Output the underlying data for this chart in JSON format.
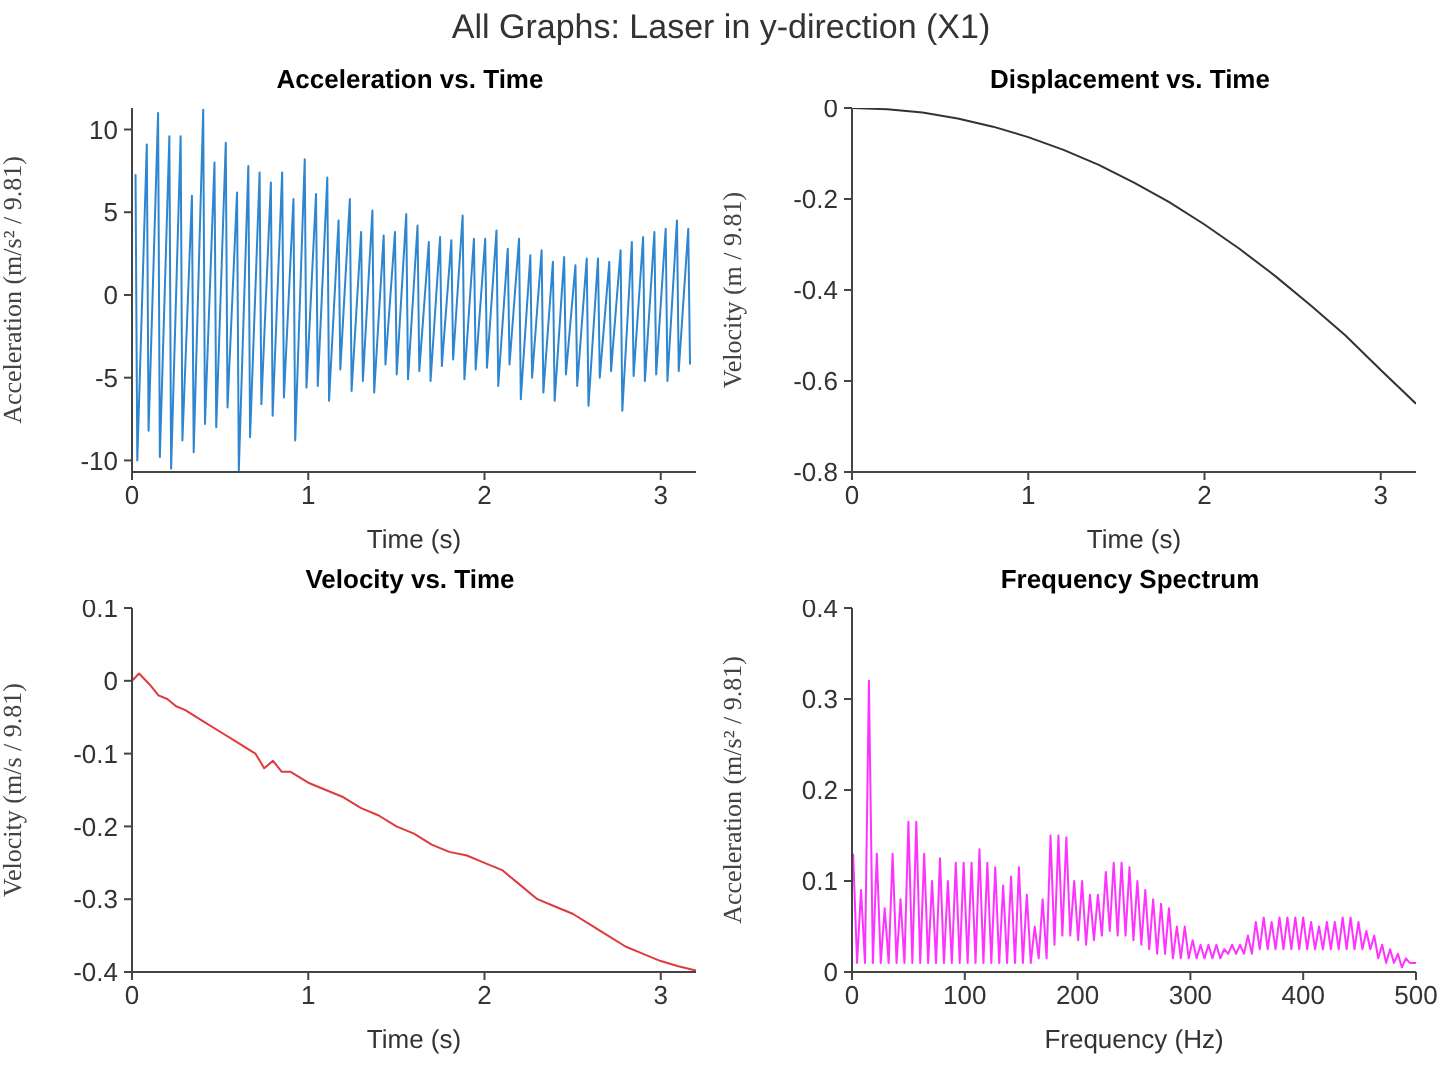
{
  "chart_data": [
    {
      "type": "other",
      "title": "All Graphs: Laser in y-direction (X1)"
    },
    {
      "type": "line",
      "title": "Acceleration vs. Time",
      "xlabel": "Time (s)",
      "ylabel": "Acceleration (m/s² / 9.81)",
      "color": "#2f86d0",
      "xlim": [
        0,
        3.2
      ],
      "xticks": [
        0,
        1,
        2,
        3
      ],
      "ylim": [
        -10.7,
        11.3
      ],
      "yticks": [
        -10,
        -5,
        0,
        5,
        10
      ],
      "x": [
        0.02,
        0.03,
        0.084,
        0.094,
        0.148,
        0.158,
        0.212,
        0.222,
        0.276,
        0.286,
        0.34,
        0.35,
        0.404,
        0.414,
        0.468,
        0.478,
        0.532,
        0.542,
        0.596,
        0.606,
        0.66,
        0.67,
        0.724,
        0.734,
        0.788,
        0.798,
        0.852,
        0.862,
        0.916,
        0.926,
        0.98,
        0.99,
        1.044,
        1.054,
        1.108,
        1.118,
        1.172,
        1.182,
        1.236,
        1.246,
        1.3,
        1.31,
        1.364,
        1.374,
        1.428,
        1.438,
        1.492,
        1.502,
        1.556,
        1.566,
        1.62,
        1.63,
        1.684,
        1.694,
        1.748,
        1.758,
        1.812,
        1.822,
        1.876,
        1.886,
        1.94,
        1.95,
        2.004,
        2.014,
        2.068,
        2.078,
        2.132,
        2.142,
        2.196,
        2.206,
        2.26,
        2.27,
        2.324,
        2.334,
        2.388,
        2.398,
        2.452,
        2.462,
        2.516,
        2.526,
        2.58,
        2.59,
        2.644,
        2.654,
        2.708,
        2.718,
        2.772,
        2.782,
        2.836,
        2.846,
        2.9,
        2.91,
        2.964,
        2.974,
        3.028,
        3.038,
        3.092,
        3.102,
        3.156,
        3.166
      ],
      "values": [
        7.3,
        -10,
        9.1,
        -8.2,
        11,
        -9.8,
        9.6,
        -10.5,
        9.6,
        -8.8,
        6,
        -9.5,
        11.2,
        -7.8,
        8,
        -8,
        9.2,
        -6.8,
        6.2,
        -10.6,
        7.8,
        -8.6,
        7.4,
        -6.6,
        6.8,
        -7.3,
        7.4,
        -6.2,
        5.8,
        -8.8,
        8.2,
        -5.6,
        6.1,
        -5.5,
        7.1,
        -6.4,
        4.5,
        -4.5,
        5.8,
        -5.8,
        3.8,
        -5.2,
        5.1,
        -5.9,
        3.6,
        -4.2,
        3.8,
        -4.8,
        4.9,
        -5.1,
        4.2,
        -4.6,
        3.2,
        -5.2,
        3.5,
        -4.3,
        3.3,
        -3.9,
        4.8,
        -5.1,
        3.4,
        -4.5,
        3.4,
        -4.4,
        3.9,
        -5.5,
        2.8,
        -4.2,
        3.4,
        -6.3,
        2.4,
        -5,
        2.7,
        -5.9,
        2,
        -6.4,
        2.3,
        -4.8,
        1.8,
        -5.5,
        2.2,
        -6.7,
        2.2,
        -5,
        2,
        -4.6,
        2.7,
        -7,
        3.2,
        -4.9,
        3.5,
        -5.2,
        3.8,
        -4.8,
        4,
        -5.2,
        4.5,
        -4.6,
        4,
        -4.2
      ]
    },
    {
      "type": "line",
      "title": "Displacement vs. Time",
      "xlabel": "Time (s)",
      "ylabel": "Velocity (m / 9.81)",
      "color": "#333333",
      "xlim": [
        0,
        3.2
      ],
      "xticks": [
        0,
        1,
        2,
        3
      ],
      "ylim": [
        -0.8,
        0
      ],
      "yticks": [
        -0.8,
        -0.6,
        -0.4,
        -0.2,
        0
      ],
      "x": [
        0,
        0.2,
        0.4,
        0.6,
        0.8,
        1,
        1.2,
        1.4,
        1.6,
        1.8,
        2,
        2.2,
        2.4,
        2.6,
        2.8,
        3,
        3.2
      ],
      "values": [
        0,
        -0.003,
        -0.01,
        -0.023,
        -0.041,
        -0.064,
        -0.092,
        -0.125,
        -0.164,
        -0.207,
        -0.256,
        -0.31,
        -0.369,
        -0.433,
        -0.5,
        -0.576,
        -0.65
      ]
    },
    {
      "type": "line",
      "title": "Velocity vs. Time",
      "xlabel": "Time (s)",
      "ylabel": "Velocity (m/s / 9.81)",
      "color": "#e03a3a",
      "xlim": [
        0,
        3.2
      ],
      "xticks": [
        0,
        1,
        2,
        3
      ],
      "ylim": [
        -0.4,
        0.1
      ],
      "yticks": [
        -0.4,
        -0.3,
        -0.2,
        -0.1,
        0,
        0.1
      ],
      "x": [
        0,
        0.04,
        0.1,
        0.15,
        0.2,
        0.25,
        0.3,
        0.4,
        0.5,
        0.6,
        0.7,
        0.75,
        0.8,
        0.85,
        0.9,
        1,
        1.1,
        1.2,
        1.3,
        1.4,
        1.5,
        1.6,
        1.7,
        1.8,
        1.9,
        2,
        2.1,
        2.2,
        2.3,
        2.4,
        2.5,
        2.6,
        2.7,
        2.8,
        2.9,
        3,
        3.1,
        3.2
      ],
      "values": [
        0,
        0.01,
        -0.005,
        -0.02,
        -0.025,
        -0.035,
        -0.04,
        -0.055,
        -0.07,
        -0.085,
        -0.1,
        -0.12,
        -0.11,
        -0.125,
        -0.125,
        -0.14,
        -0.15,
        -0.16,
        -0.175,
        -0.185,
        -0.2,
        -0.21,
        -0.225,
        -0.235,
        -0.24,
        -0.25,
        -0.26,
        -0.28,
        -0.3,
        -0.31,
        -0.32,
        -0.335,
        -0.35,
        -0.365,
        -0.375,
        -0.385,
        -0.392,
        -0.398
      ]
    },
    {
      "type": "line",
      "title": "Frequency Spectrum",
      "xlabel": "Frequency (Hz)",
      "ylabel": "Acceleration (m/s² / 9.81)",
      "color": "#ff33ff",
      "xlim": [
        0,
        500
      ],
      "xticks": [
        0,
        100,
        200,
        300,
        400,
        500
      ],
      "ylim": [
        0,
        0.4
      ],
      "yticks": [
        0,
        0.1,
        0.2,
        0.3,
        0.4
      ],
      "x": [
        1,
        4.5,
        8,
        11.5,
        15,
        18.5,
        22,
        25.5,
        29,
        32.5,
        36,
        39.5,
        43,
        46.5,
        50,
        53.5,
        57,
        60.5,
        64,
        67.5,
        71,
        74.5,
        78,
        81.5,
        85,
        88.5,
        92,
        95.5,
        99,
        102.5,
        106,
        109.5,
        113,
        116.5,
        120,
        123.5,
        127,
        130.5,
        134,
        137.5,
        141,
        144.5,
        148,
        151.5,
        155,
        158.5,
        162,
        165.5,
        169,
        172.5,
        176,
        179.5,
        183,
        186.5,
        190,
        193.5,
        197,
        200.5,
        204,
        207.5,
        211,
        214.5,
        218,
        221.5,
        225,
        228.5,
        232,
        235.5,
        239,
        242.5,
        246,
        249.5,
        253,
        256.5,
        260,
        263.5,
        267,
        270.5,
        274,
        277.5,
        281,
        284.5,
        288,
        291.5,
        295,
        298.5,
        302,
        305.5,
        309,
        312.5,
        316,
        319.5,
        323,
        326.5,
        330,
        333.5,
        337,
        340.5,
        344,
        347.5,
        351,
        354.5,
        358,
        361.5,
        365,
        368.5,
        372,
        375.5,
        379,
        382.5,
        386,
        389.5,
        393,
        396.5,
        400,
        403.5,
        407,
        410.5,
        414,
        417.5,
        421,
        424.5,
        428,
        431.5,
        435,
        438.5,
        442,
        445.5,
        449,
        452.5,
        456,
        459.5,
        463,
        466.5,
        470,
        473.5,
        477,
        480.5,
        484,
        487.5,
        491,
        494.5,
        500
      ],
      "values": [
        0.13,
        0.01,
        0.09,
        0.01,
        0.32,
        0.01,
        0.13,
        0.01,
        0.07,
        0.01,
        0.13,
        0.01,
        0.08,
        0.01,
        0.165,
        0.01,
        0.165,
        0.01,
        0.13,
        0.01,
        0.1,
        0.01,
        0.125,
        0.01,
        0.1,
        0.01,
        0.12,
        0.01,
        0.12,
        0.01,
        0.12,
        0.01,
        0.135,
        0.01,
        0.12,
        0.01,
        0.115,
        0.01,
        0.095,
        0.01,
        0.105,
        0.01,
        0.115,
        0.01,
        0.085,
        0.01,
        0.05,
        0.015,
        0.08,
        0.015,
        0.15,
        0.03,
        0.15,
        0.04,
        0.148,
        0.04,
        0.1,
        0.035,
        0.1,
        0.03,
        0.085,
        0.035,
        0.085,
        0.04,
        0.11,
        0.045,
        0.12,
        0.04,
        0.12,
        0.04,
        0.115,
        0.035,
        0.1,
        0.03,
        0.09,
        0.025,
        0.08,
        0.02,
        0.075,
        0.02,
        0.07,
        0.015,
        0.05,
        0.015,
        0.05,
        0.015,
        0.035,
        0.015,
        0.03,
        0.015,
        0.03,
        0.015,
        0.03,
        0.015,
        0.025,
        0.02,
        0.03,
        0.02,
        0.03,
        0.02,
        0.04,
        0.02,
        0.055,
        0.025,
        0.06,
        0.025,
        0.055,
        0.025,
        0.06,
        0.025,
        0.06,
        0.025,
        0.06,
        0.025,
        0.06,
        0.025,
        0.055,
        0.025,
        0.05,
        0.025,
        0.055,
        0.025,
        0.055,
        0.025,
        0.06,
        0.025,
        0.06,
        0.025,
        0.055,
        0.025,
        0.045,
        0.025,
        0.04,
        0.015,
        0.03,
        0.01,
        0.025,
        0.01,
        0.02,
        0.005,
        0.015,
        0.01,
        0.01
      ]
    }
  ]
}
